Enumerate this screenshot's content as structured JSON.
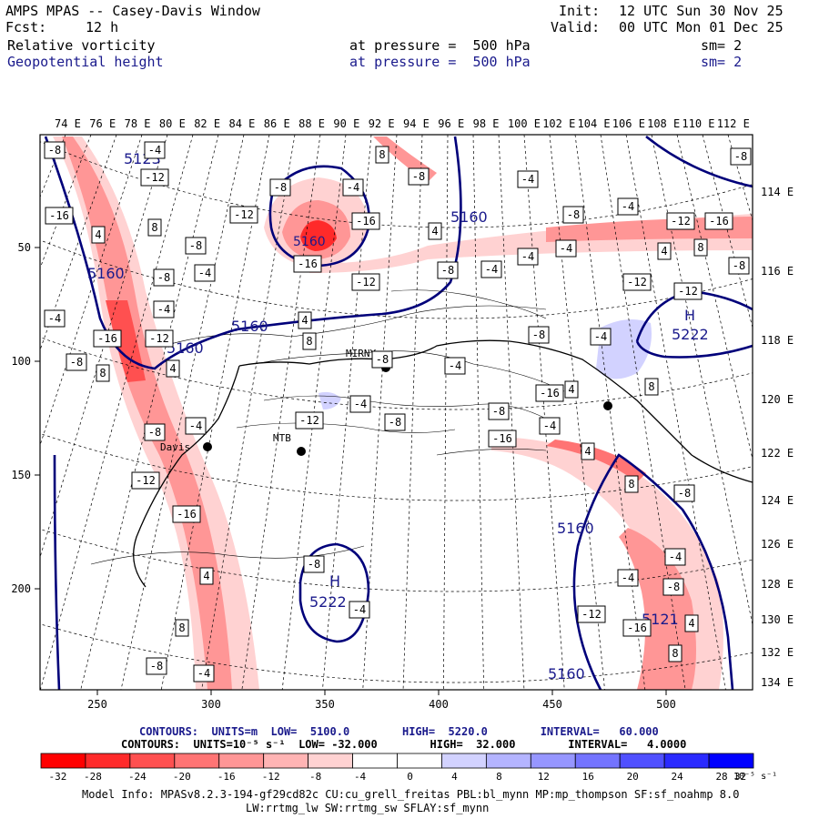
{
  "header": {
    "model_line": "AMPS MPAS -- Casey-Davis Window",
    "fcst_label": "Fcst:",
    "fcst_value": "12 h",
    "init_label": "Init:",
    "init_value": "12 UTC Sun 30 Nov 25",
    "valid_label": "Valid:",
    "valid_value": "00 UTC Mon 01 Dec 25",
    "field1_name": "Relative vorticity",
    "field1_level": "at pressure =  500 hPa",
    "field1_sm": "sm= 2",
    "field2_name": "Geopotential height",
    "field2_level": "at pressure =  500 hPa",
    "field2_sm": "sm= 2"
  },
  "map": {
    "top_lon_labels": [
      "74 E",
      "76 E",
      "78 E",
      "80 E",
      "82 E",
      "84 E",
      "86 E",
      "88 E",
      "90 E",
      "92 E",
      "94 E",
      "96 E",
      "98 E",
      "100 E",
      "102 E",
      "104 E",
      "106 E",
      "108 E",
      "110 E",
      "112 E"
    ],
    "right_lon_labels": [
      "114 E",
      "116 E",
      "118 E",
      "120 E",
      "122 E",
      "124 E",
      "126 E",
      "128 E",
      "130 E",
      "132 E",
      "134 E"
    ],
    "left_y_labels": [
      "50",
      "100",
      "150",
      "200"
    ],
    "bottom_x_labels": [
      "250",
      "300",
      "350",
      "400",
      "450",
      "500"
    ],
    "stations": [
      "Davis",
      "MTB",
      "MIRNY"
    ],
    "height_labels": [
      "5123",
      "5160",
      "5160",
      "5160",
      "5160",
      "5160",
      "5160",
      "5222",
      "5222",
      "5121",
      "5160"
    ],
    "high_marker": "H",
    "vort_box_values": [
      "-8",
      "-4",
      "-12",
      "-16",
      "4",
      "8",
      "-8",
      "-4"
    ]
  },
  "legend": {
    "contours1": "CONTOURS:  UNITS=m  LOW=  5100.0        HIGH=  5220.0        INTERVAL=   60.000",
    "contours2": "CONTOURS:  UNITS=10⁻⁵ s⁻¹  LOW= -32.000        HIGH=  32.000        INTERVAL=   4.0000",
    "colorbar_values": [
      "-32",
      "-28",
      "-24",
      "-20",
      "-16",
      "-12",
      "-8",
      "-4",
      "0",
      "4",
      "8",
      "12",
      "16",
      "20",
      "24",
      "28",
      "32"
    ],
    "colorbar_units": "10⁻⁵ s⁻¹",
    "colors": [
      "#ff0000",
      "#ff2a2a",
      "#ff5050",
      "#ff7474",
      "#ff9696",
      "#ffb4b4",
      "#ffd2d2",
      "#ffffff",
      "#ffffff",
      "#d2d2ff",
      "#b4b4ff",
      "#9696ff",
      "#7474ff",
      "#5050ff",
      "#2a2aff",
      "#0000ff"
    ]
  },
  "footer": {
    "model_info": "Model Info: MPASv8.2.3-194-gf29cd82c CU:cu_grell_freitas PBL:bl_mynn MP:mp_thompson SF:sf_noahmp 8.0",
    "model_info2": "LW:rrtmg_lw SW:rrtmg_sw SFLAY:sf_mynn"
  }
}
